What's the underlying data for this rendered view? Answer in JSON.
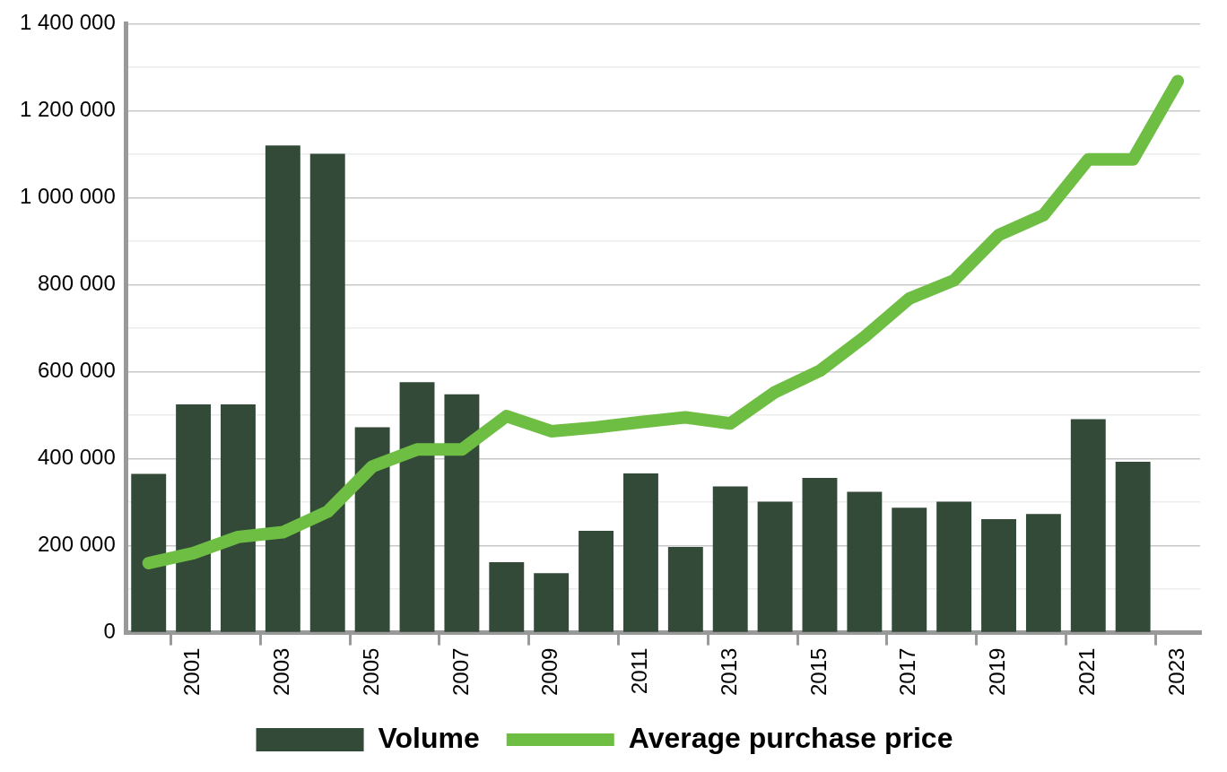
{
  "chart_data": {
    "type": "bar",
    "categories": [
      null,
      "2001",
      null,
      "2003",
      null,
      "2005",
      null,
      "2007",
      null,
      "2009",
      null,
      "2011",
      null,
      "2013",
      null,
      "2015",
      null,
      "2017",
      null,
      "2019",
      null,
      "2021",
      null,
      "2023"
    ],
    "series": [
      {
        "name": "Volume",
        "color": "#324a37",
        "values": [
          365000,
          525000,
          525000,
          1120000,
          1101000,
          472000,
          576000,
          548000,
          162000,
          137000,
          234000,
          366000,
          197000,
          336000,
          301000,
          356000,
          324000,
          287000,
          301000,
          261000,
          273000,
          491000,
          393000,
          null
        ]
      },
      {
        "name": "Average purchase price",
        "type": "line",
        "color": "#6fbe44",
        "values": [
          160000,
          183000,
          220000,
          231000,
          278000,
          382000,
          421000,
          421000,
          498000,
          463000,
          472000,
          484000,
          495000,
          481000,
          553000,
          602000,
          680000,
          768000,
          810000,
          914000,
          960000,
          1088000,
          1088000,
          1268000
        ]
      }
    ],
    "ylim": [
      0,
      1400000
    ],
    "yticks": [
      {
        "value": 0,
        "label": "0"
      },
      {
        "value": 100000,
        "label": null
      },
      {
        "value": 200000,
        "label": "200 000"
      },
      {
        "value": 300000,
        "label": null
      },
      {
        "value": 400000,
        "label": "400 000"
      },
      {
        "value": 500000,
        "label": null
      },
      {
        "value": 600000,
        "label": "600 000"
      },
      {
        "value": 700000,
        "label": null
      },
      {
        "value": 800000,
        "label": "800 000"
      },
      {
        "value": 900000,
        "label": null
      },
      {
        "value": 1000000,
        "label": "1 000 000"
      },
      {
        "value": 1100000,
        "label": null
      },
      {
        "value": 1200000,
        "label": "1 200 000"
      },
      {
        "value": 1300000,
        "label": null
      },
      {
        "value": 1400000,
        "label": "1 400 000"
      }
    ],
    "grid": "y",
    "legend": "bottom",
    "marker": "none",
    "line_style": "solid"
  }
}
